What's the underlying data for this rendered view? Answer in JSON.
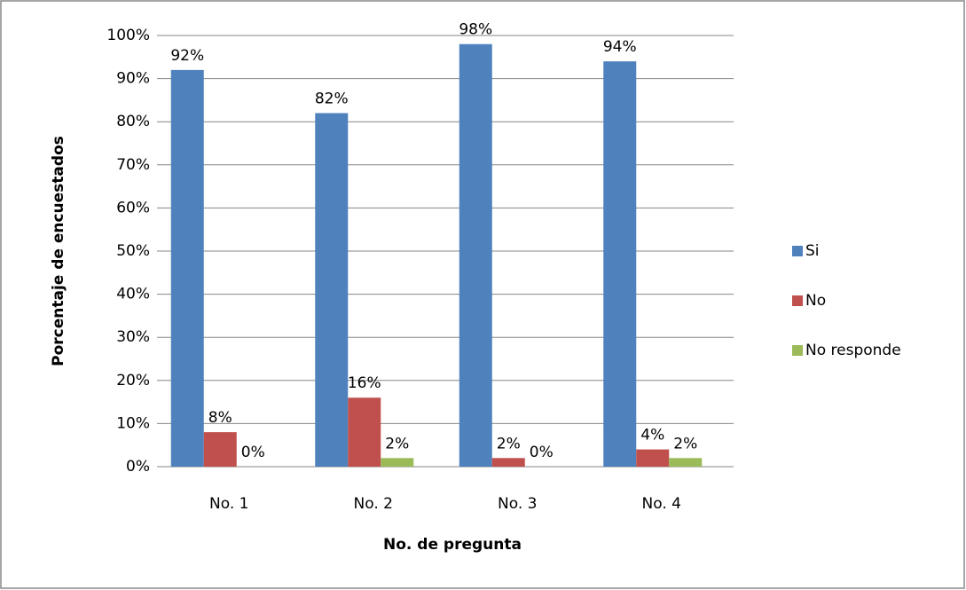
{
  "chart_data": {
    "type": "bar",
    "categories": [
      "No. 1",
      "No. 2",
      "No. 3",
      "No. 4"
    ],
    "series": [
      {
        "name": "Si",
        "color": "#4f81bd",
        "values": [
          92,
          82,
          98,
          94
        ],
        "value_labels": [
          "92%",
          "82%",
          "98%",
          "94%"
        ]
      },
      {
        "name": "No",
        "color": "#c0504d",
        "values": [
          8,
          16,
          2,
          4
        ],
        "value_labels": [
          "8%",
          "16%",
          "2%",
          "4%"
        ]
      },
      {
        "name": "No responde",
        "color": "#9bbb59",
        "values": [
          0,
          2,
          0,
          2
        ],
        "value_labels": [
          "0%",
          "2%",
          "0%",
          "2%"
        ]
      }
    ],
    "xlabel": "No. de pregunta",
    "ylabel": "Porcentaje de encuestados",
    "ylim": [
      0,
      100
    ],
    "yticks": [
      {
        "value": 0,
        "label": "0%"
      },
      {
        "value": 10,
        "label": "10%"
      },
      {
        "value": 20,
        "label": "20%"
      },
      {
        "value": 30,
        "label": "30%"
      },
      {
        "value": 40,
        "label": "40%"
      },
      {
        "value": 50,
        "label": "50%"
      },
      {
        "value": 60,
        "label": "60%"
      },
      {
        "value": 70,
        "label": "70%"
      },
      {
        "value": 80,
        "label": "80%"
      },
      {
        "value": 90,
        "label": "90%"
      },
      {
        "value": 100,
        "label": "100%"
      }
    ],
    "grid": true,
    "legend": "right"
  }
}
